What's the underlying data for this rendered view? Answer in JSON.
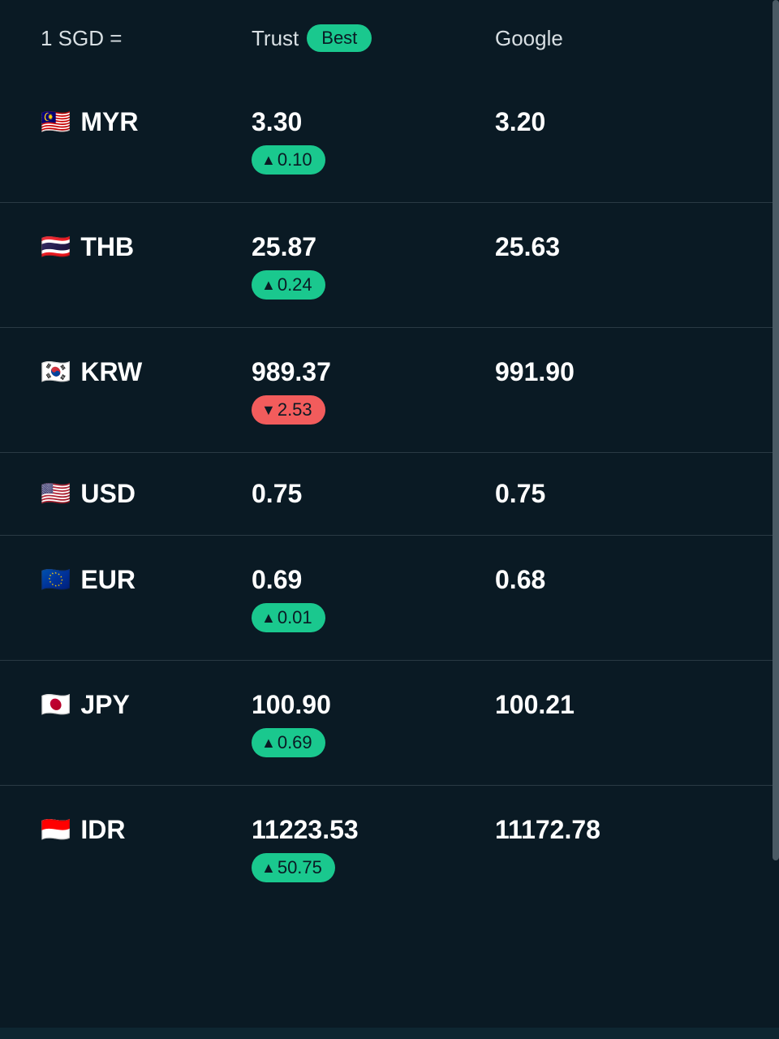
{
  "colors": {
    "background": "#0a1a24",
    "text_primary": "#ffffff",
    "text_secondary": "#d8dfe3",
    "divider": "#2a3a44",
    "badge_up": "#1ac88e",
    "badge_down": "#f25c5c",
    "scrollbar": "#4a5a64",
    "bottom_accent": "#0e2631"
  },
  "header": {
    "base_label": "1 SGD =",
    "trust_label": "Trust",
    "best_badge": "Best",
    "google_label": "Google"
  },
  "rows": [
    {
      "flag": "🇲🇾",
      "code": "MYR",
      "trust_rate": "3.30",
      "delta_direction": "up",
      "delta_value": "0.10",
      "google_rate": "3.20"
    },
    {
      "flag": "🇹🇭",
      "code": "THB",
      "trust_rate": "25.87",
      "delta_direction": "up",
      "delta_value": "0.24",
      "google_rate": "25.63"
    },
    {
      "flag": "🇰🇷",
      "code": "KRW",
      "trust_rate": "989.37",
      "delta_direction": "down",
      "delta_value": "2.53",
      "google_rate": "991.90"
    },
    {
      "flag": "🇺🇸",
      "code": "USD",
      "trust_rate": "0.75",
      "delta_direction": null,
      "delta_value": null,
      "google_rate": "0.75",
      "compact": true
    },
    {
      "flag": "🇪🇺",
      "code": "EUR",
      "trust_rate": "0.69",
      "delta_direction": "up",
      "delta_value": "0.01",
      "google_rate": "0.68"
    },
    {
      "flag": "🇯🇵",
      "code": "JPY",
      "trust_rate": "100.90",
      "delta_direction": "up",
      "delta_value": "0.69",
      "google_rate": "100.21"
    },
    {
      "flag": "🇮🇩",
      "code": "IDR",
      "trust_rate": "11223.53",
      "delta_direction": "up",
      "delta_value": "50.75",
      "google_rate": "11172.78",
      "no_border": true
    }
  ]
}
